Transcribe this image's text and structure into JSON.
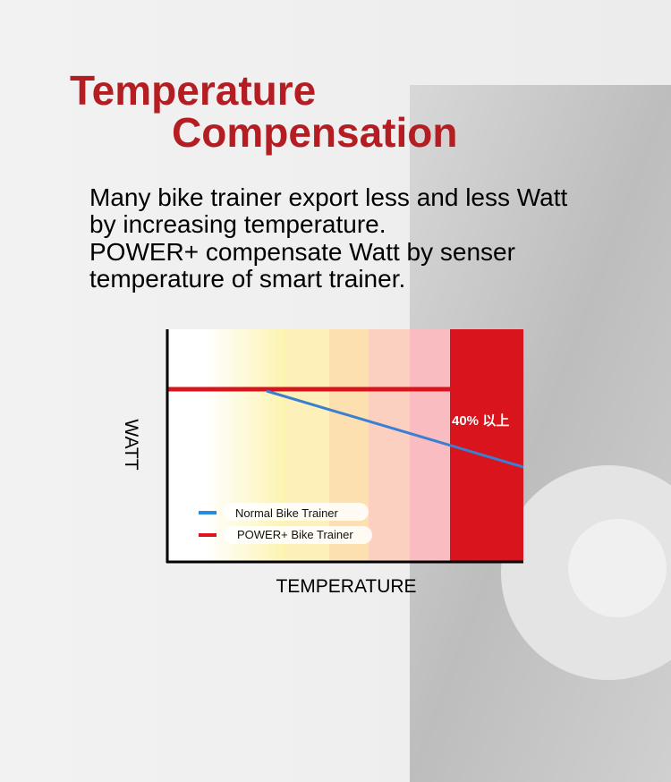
{
  "header": {
    "title_line1": "Temperature",
    "title_line2": "Compensation"
  },
  "description": {
    "lines": [
      "Many bike trainer export less and less Watt",
      "by increasing temperature.",
      "POWER+ compensate Watt by senser",
      "temperature of smart trainer."
    ]
  },
  "chart": {
    "y_axis_label": "WATT",
    "x_axis_label": "TEMPERATURE",
    "annotation": "40% 以上",
    "legend": [
      "Normal Bike Trainer",
      "POWER+ Bike Trainer"
    ]
  }
}
